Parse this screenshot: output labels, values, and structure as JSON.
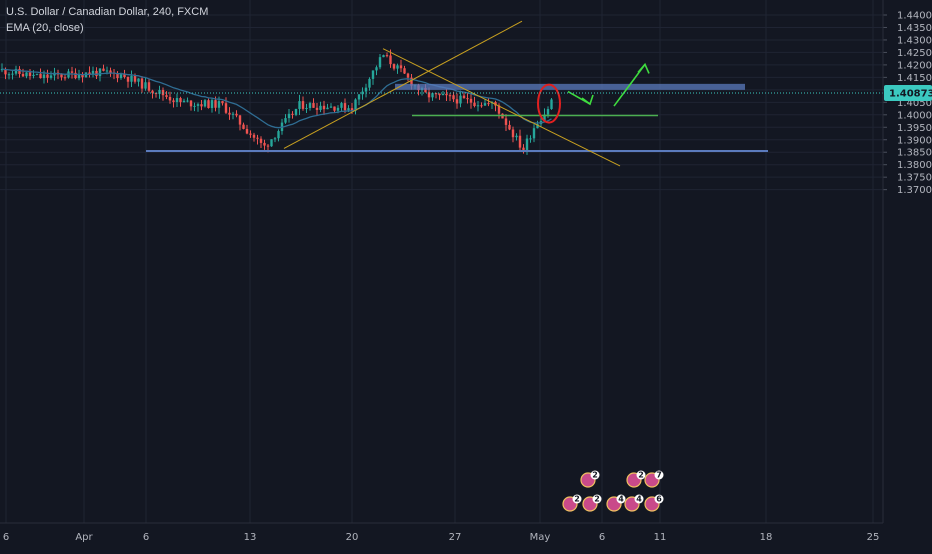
{
  "legend": {
    "symbol": "U.S. Dollar / Canadian Dollar, 240, FXCM",
    "indicator": "EMA (20, close)"
  },
  "colors": {
    "background": "#131722",
    "up": "#26a69a",
    "down": "#ef5350",
    "ema": "#2f6d93",
    "trendline": "#c8a020",
    "support": "#5b7bbd",
    "level": "#4caf50",
    "arrow": "#3fdc3f",
    "circle": "#e02020",
    "price_label_bg": "#3bc9c0"
  },
  "chart_data": {
    "type": "candlestick",
    "ylim": [
      1.3675,
      1.4425
    ],
    "y_ticks": [
      "1.44000",
      "1.43500",
      "1.43000",
      "1.42500",
      "1.42000",
      "1.41500",
      "1.41000",
      "1.40500",
      "1.40000",
      "1.39500",
      "1.39000",
      "1.38500",
      "1.38000",
      "1.37500",
      "1.37000"
    ],
    "x_ticks": [
      "6",
      "Apr",
      "6",
      "13",
      "20",
      "27",
      "May",
      "6",
      "11",
      "18",
      "25"
    ],
    "last_price": "1.40873",
    "anchors": [
      {
        "x": "Mar 27",
        "price": 1.418
      },
      {
        "x": "Mar 30",
        "price": 1.415
      },
      {
        "x": "Apr 2",
        "price": 1.417
      },
      {
        "x": "Apr 5",
        "price": 1.416
      },
      {
        "x": "Apr 8",
        "price": 1.405
      },
      {
        "x": "Apr 11",
        "price": 1.404
      },
      {
        "x": "Apr 14",
        "price": 1.387
      },
      {
        "x": "Apr 17",
        "price": 1.404
      },
      {
        "x": "Apr 20",
        "price": 1.403
      },
      {
        "x": "Apr 23",
        "price": 1.424
      },
      {
        "x": "Apr 26",
        "price": 1.408
      },
      {
        "x": "Apr 29",
        "price": 1.404
      },
      {
        "x": "May 1",
        "price": 1.386
      },
      {
        "x": "May 2",
        "price": 1.396
      },
      {
        "x": "May 3",
        "price": 1.402
      },
      {
        "x": "May 4",
        "price": 1.4087
      }
    ],
    "annotations": [
      {
        "type": "support-line",
        "price": 1.3855
      },
      {
        "type": "resistance-zone",
        "price": 1.4112
      },
      {
        "type": "horizontal-level",
        "price": 1.3997
      },
      {
        "type": "trendline-up",
        "from": {
          "x": "Apr 14",
          "price": 1.3865
        },
        "to": {
          "x": "Apr 30",
          "price": 1.4375
        }
      },
      {
        "type": "trendline-down",
        "from": {
          "x": "Apr 23",
          "price": 1.4265
        },
        "to": {
          "x": "May 8",
          "price": 1.3795
        }
      },
      {
        "type": "projection-arrow-down",
        "from": {
          "x": "May 4",
          "price": 1.4085
        },
        "to": {
          "x": "May 6",
          "price": 1.4003
        }
      },
      {
        "type": "projection-arrow-up",
        "from": {
          "x": "May 7",
          "price": 1.4003
        },
        "to": {
          "x": "May 11",
          "price": 1.4202
        }
      },
      {
        "type": "ellipse-highlight",
        "center": {
          "x": "May 3",
          "price": 1.4025
        }
      }
    ],
    "event_badges": [
      {
        "number": "2",
        "row": 1
      },
      {
        "number": "2",
        "row": 1
      },
      {
        "number": "7",
        "row": 1
      },
      {
        "number": "2",
        "row": 2
      },
      {
        "number": "2",
        "row": 2
      },
      {
        "number": "4",
        "row": 2
      },
      {
        "number": "4",
        "row": 2
      },
      {
        "number": "6",
        "row": 2
      }
    ]
  }
}
